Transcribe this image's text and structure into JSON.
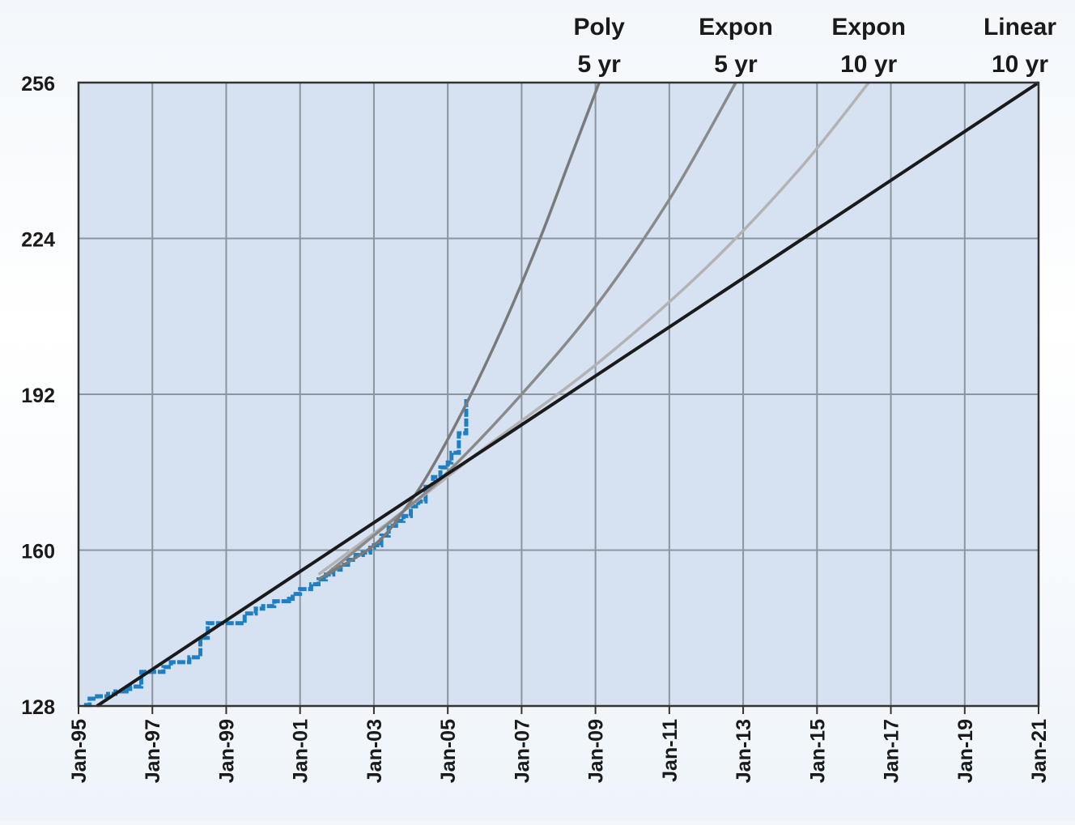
{
  "chart_data": {
    "type": "line",
    "title": "",
    "xlabel": "",
    "ylabel": "",
    "x_ticks": [
      "Jan-95",
      "Jan-97",
      "Jan-99",
      "Jan-01",
      "Jan-03",
      "Jan-05",
      "Jan-07",
      "Jan-09",
      "Jan-11",
      "Jan-13",
      "Jan-15",
      "Jan-17",
      "Jan-19",
      "Jan-21"
    ],
    "y_ticks": [
      "128",
      "160",
      "192",
      "224",
      "256"
    ],
    "xlim": [
      1995.0,
      2021.0
    ],
    "ylim": [
      128,
      256
    ],
    "grid": true,
    "colors": {
      "plot_bg": "#d6e2f1",
      "grid": "#8c959e",
      "actual": "#1f7fc4",
      "linear": "#1a1a1a",
      "expon10": "#b3b3b3",
      "expon5": "#8a8a8a",
      "poly5": "#7a7a7a"
    },
    "series": [
      {
        "name_line1": "Poly",
        "name_line2": "5 yr",
        "style": "trend",
        "x": [
          2001.5,
          2003.0,
          2003.8,
          2004.5,
          2005.5,
          2006.5,
          2007.5,
          2008.3,
          2009.1
        ],
        "y": [
          154,
          161,
          168,
          176,
          190,
          206,
          224,
          240,
          256
        ]
      },
      {
        "name_line1": "Expon",
        "name_line2": "5 yr",
        "style": "trend",
        "x": [
          2001.7,
          2003.8,
          2005.0,
          2007.0,
          2009.0,
          2011.0,
          2012.8
        ],
        "y": [
          155,
          168,
          176,
          192,
          210,
          232,
          256
        ]
      },
      {
        "name_line1": "Expon",
        "name_line2": "10 yr",
        "style": "trend",
        "x": [
          2001.5,
          2003.8,
          2006.0,
          2009.0,
          2012.0,
          2014.5,
          2016.4
        ],
        "y": [
          155,
          168,
          181,
          198,
          218,
          238,
          256
        ]
      },
      {
        "name_line1": "Linear",
        "name_line2": "10 yr",
        "style": "trend",
        "x": [
          1995.5,
          2021.0
        ],
        "y": [
          128,
          256
        ]
      },
      {
        "name_line1": "",
        "name_line2": "",
        "style": "actual",
        "x": [
          1995.15,
          1995.3,
          1995.5,
          1995.8,
          1996.0,
          1996.3,
          1996.4,
          1996.6,
          1996.7,
          1997.0,
          1997.3,
          1997.5,
          1997.8,
          1998.0,
          1998.3,
          1998.5,
          1998.8,
          1999.0,
          1999.2,
          1999.5,
          1999.8,
          2000.0,
          2000.3,
          2000.5,
          2000.7,
          2000.8,
          2001.0,
          2001.3,
          2001.5,
          2001.7,
          2001.9,
          2002.1,
          2002.3,
          2002.5,
          2002.7,
          2002.9,
          2003.0,
          2003.2,
          2003.4,
          2003.6,
          2003.8,
          2004.0,
          2004.2,
          2004.4,
          2004.6,
          2004.8,
          2005.0,
          2005.1,
          2005.3,
          2005.5
        ],
        "y": [
          128.2,
          129.5,
          130.0,
          130.5,
          131.0,
          131.5,
          132.0,
          132.0,
          135.0,
          135.0,
          136.0,
          137.0,
          137.0,
          138.0,
          142.0,
          145.0,
          145.0,
          145.0,
          145.0,
          147.0,
          148.0,
          148.5,
          149.5,
          149.5,
          150.0,
          151.0,
          152.0,
          153.0,
          154.0,
          155.0,
          156.0,
          157.0,
          158.0,
          159.0,
          159.5,
          160.5,
          161.0,
          163.0,
          165.0,
          166.0,
          167.0,
          169.0,
          170.0,
          173.0,
          175.0,
          177.0,
          178.0,
          180.0,
          184.0,
          191.0
        ]
      }
    ]
  }
}
